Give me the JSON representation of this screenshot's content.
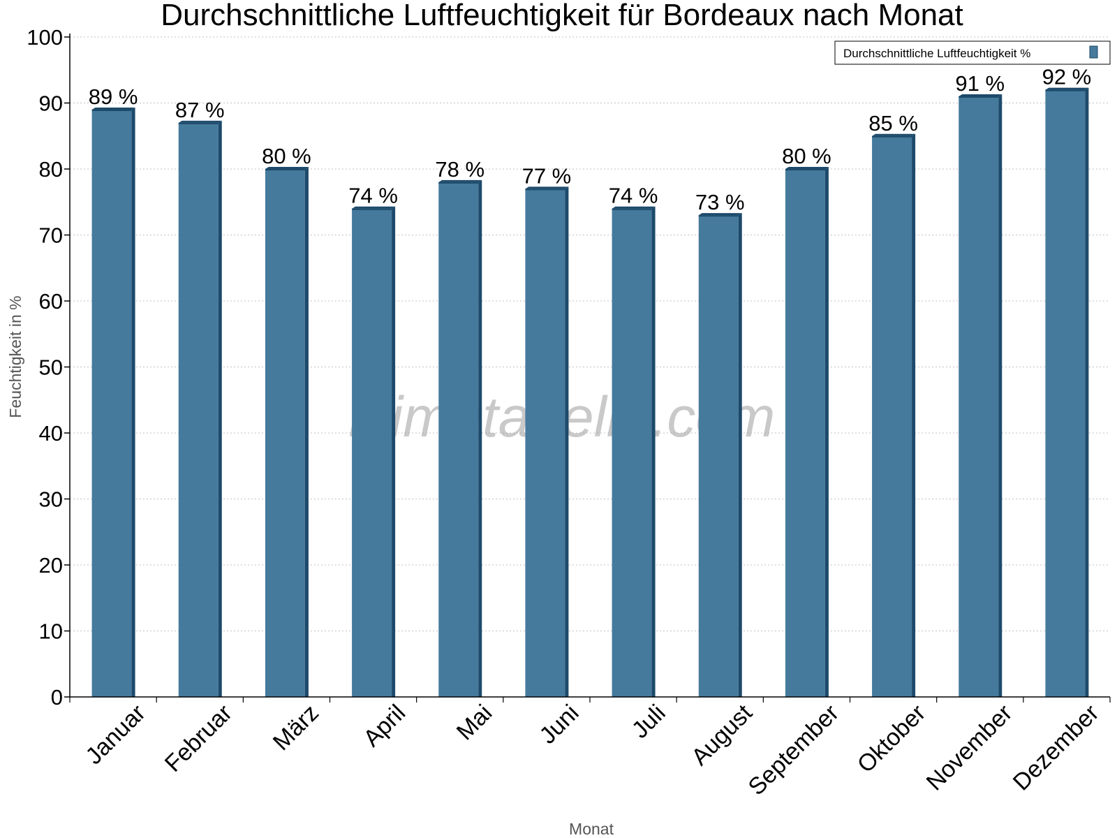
{
  "chart_data": {
    "type": "bar",
    "title": "Durchschnittliche Luftfeuchtigkeit für Bordeaux nach Monat",
    "xlabel": "Monat",
    "ylabel": "Feuchtigkeit in %",
    "ylim": [
      0,
      100
    ],
    "yticks": [
      0,
      10,
      20,
      30,
      40,
      50,
      60,
      70,
      80,
      90,
      100
    ],
    "grid": "horizontal dotted",
    "legend_position": "top-right",
    "categories": [
      "Januar",
      "Februar",
      "März",
      "April",
      "Mai",
      "Juni",
      "Juli",
      "August",
      "September",
      "Oktober",
      "November",
      "Dezember"
    ],
    "series": [
      {
        "name": "Durchschnittliche Luftfeuchtigkeit %",
        "values": [
          89,
          87,
          80,
          74,
          78,
          77,
          74,
          73,
          80,
          85,
          91,
          92
        ],
        "labels": [
          "89 %",
          "87 %",
          "80 %",
          "74 %",
          "78 %",
          "77 %",
          "74 %",
          "73 %",
          "80 %",
          "85 %",
          "91 %",
          "92 %"
        ]
      }
    ],
    "colors": {
      "bar": "#457a9c",
      "bar_edge": "#1d4a6b",
      "grid": "#c0c0c0"
    }
  },
  "watermark": "klimatabelle.com"
}
